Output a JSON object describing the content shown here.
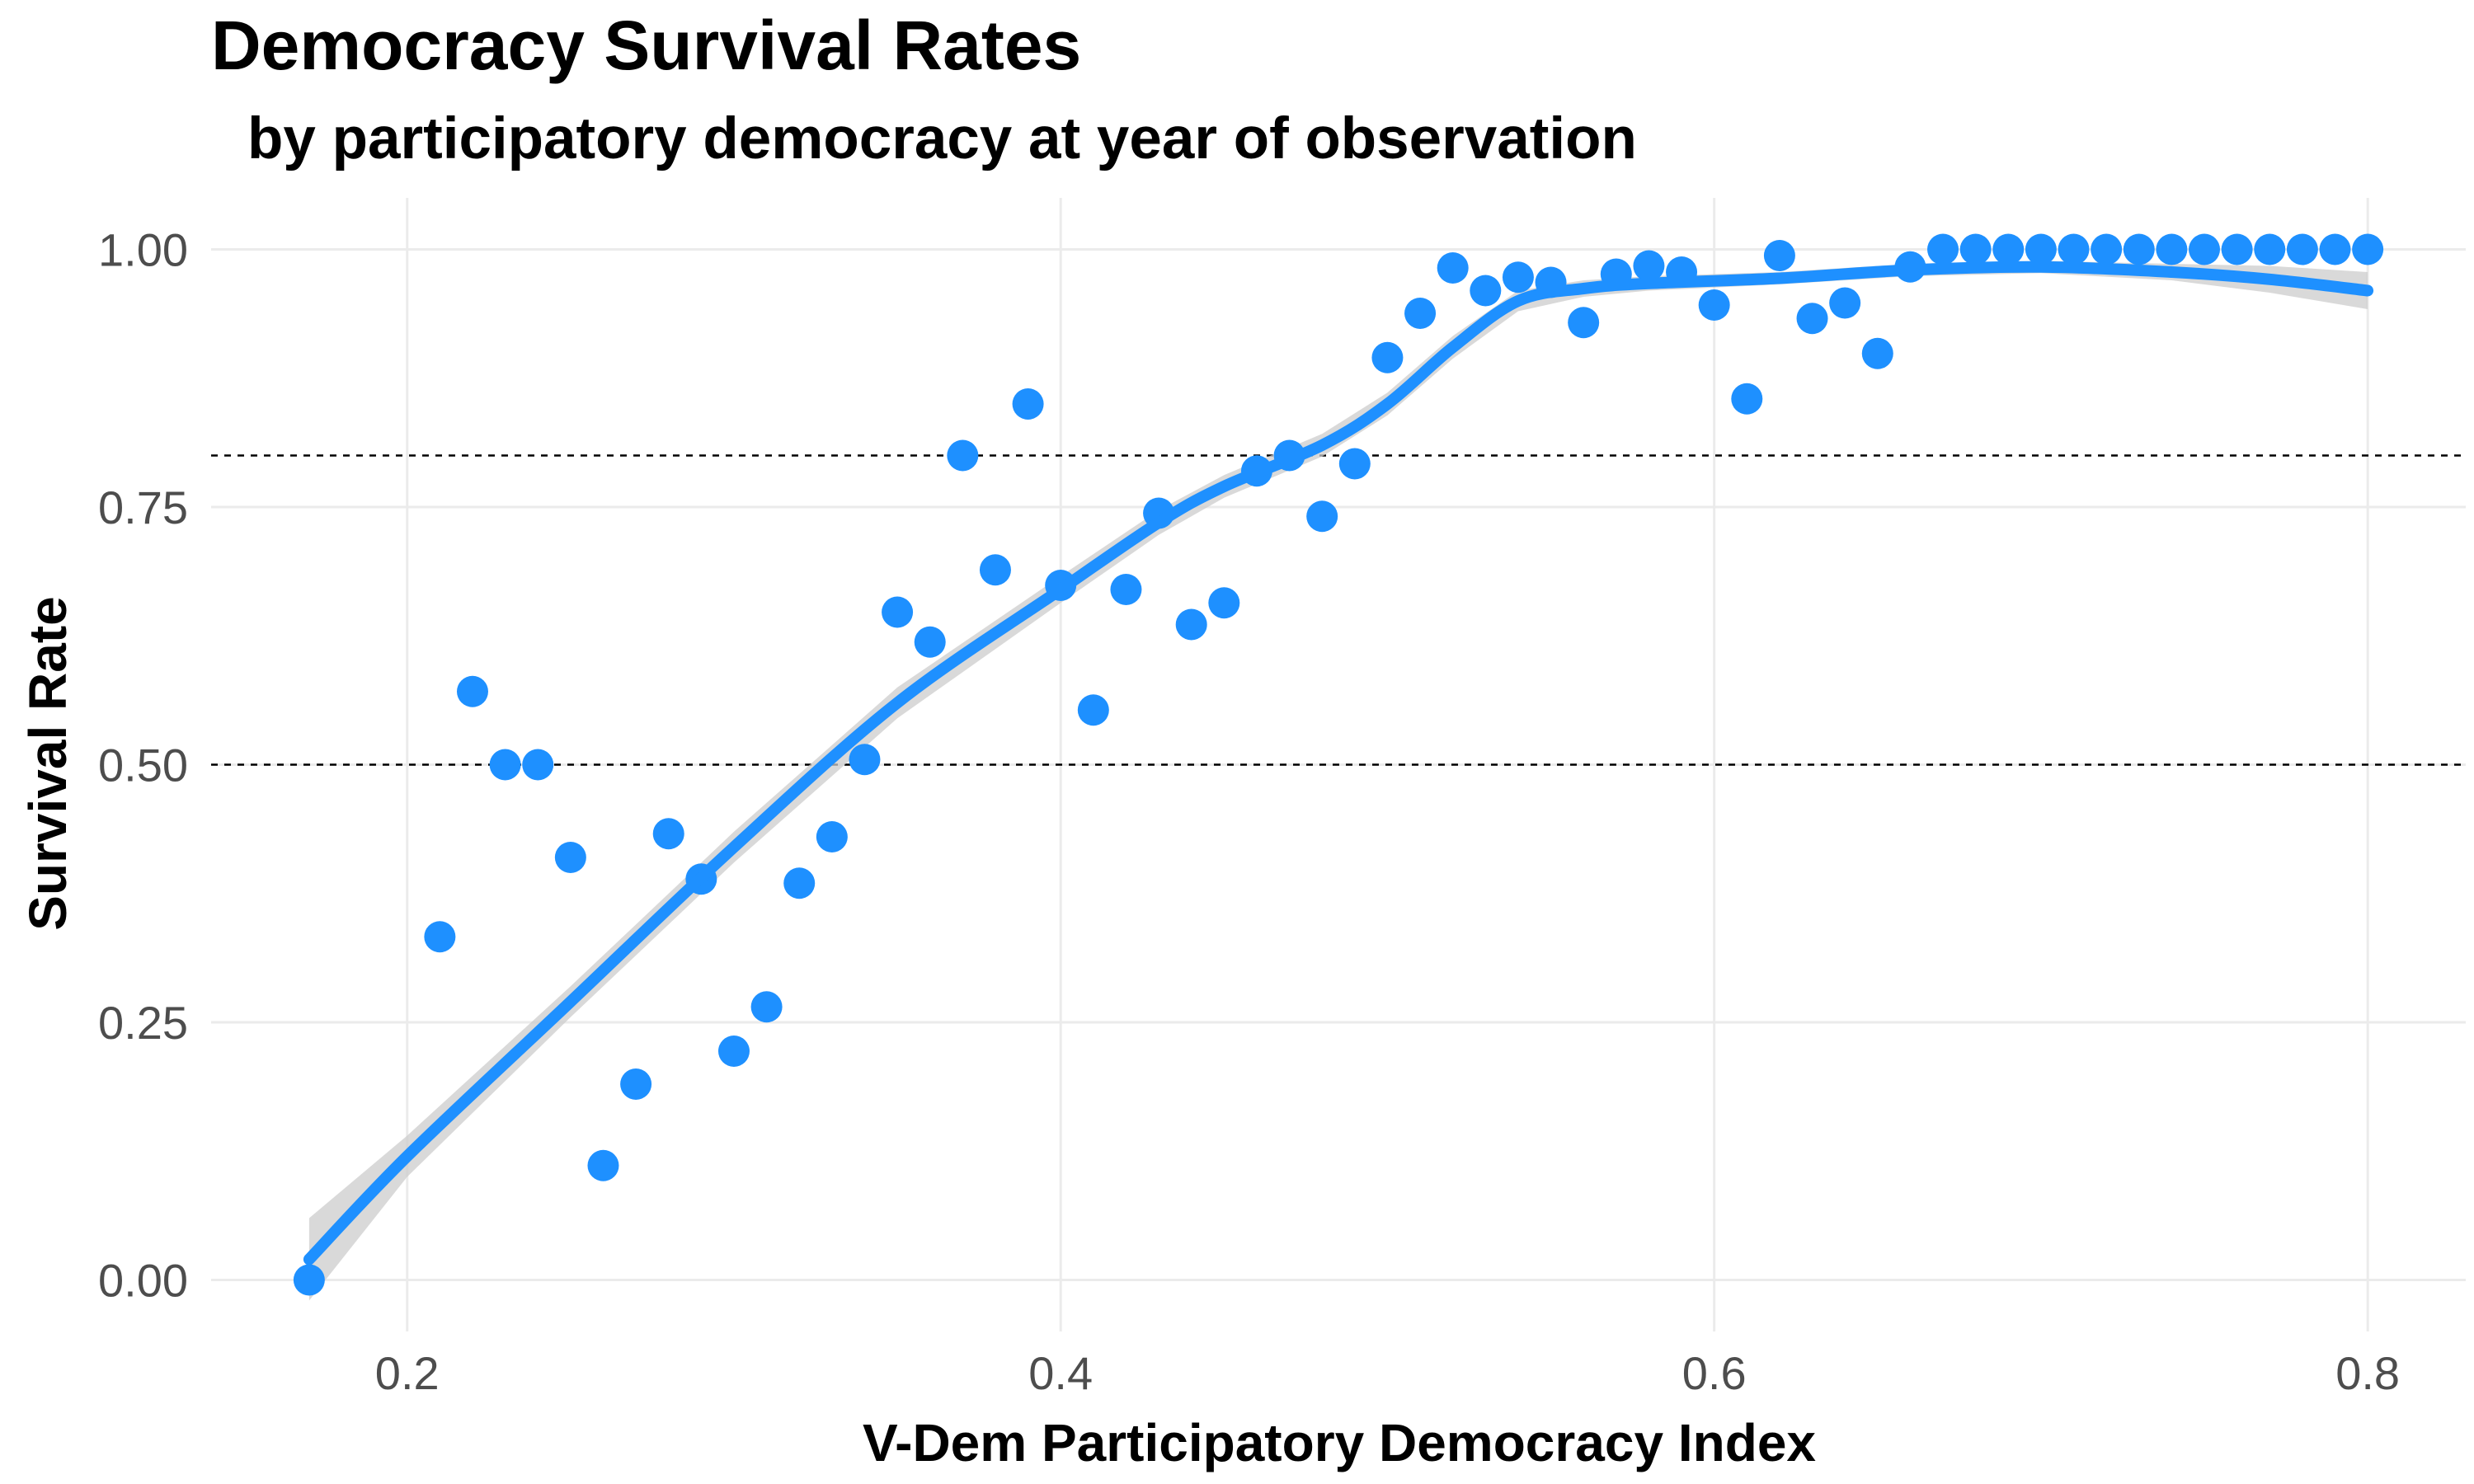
{
  "chart_data": {
    "type": "scatter",
    "title": "Democracy Survival Rates",
    "subtitle": "by participatory democracy at year of observation",
    "xlabel": "V-Dem Participatory Democracy Index",
    "ylabel": "Survival Rate",
    "xlim": [
      0.14,
      0.83
    ],
    "ylim": [
      -0.05,
      1.05
    ],
    "x_ticks": [
      0.2,
      0.4,
      0.6,
      0.8
    ],
    "x_tick_labels": [
      "0.2",
      "0.4",
      "0.6",
      "0.8"
    ],
    "y_ticks": [
      0.0,
      0.25,
      0.5,
      0.75,
      1.0
    ],
    "y_tick_labels": [
      "0.00",
      "0.25",
      "0.50",
      "0.75",
      "1.00"
    ],
    "grid": true,
    "legend": "none",
    "reference_lines": [
      0.5,
      0.8
    ],
    "point_color": "#1e90ff",
    "line_color": "#1e90ff",
    "ribbon_color": "#cccccc",
    "points": {
      "x": [
        0.17,
        0.21,
        0.22,
        0.23,
        0.24,
        0.25,
        0.26,
        0.27,
        0.28,
        0.29,
        0.3,
        0.31,
        0.32,
        0.33,
        0.34,
        0.35,
        0.36,
        0.37,
        0.38,
        0.39,
        0.4,
        0.41,
        0.42,
        0.43,
        0.44,
        0.45,
        0.46,
        0.47,
        0.48,
        0.49,
        0.5,
        0.51,
        0.52,
        0.53,
        0.54,
        0.55,
        0.56,
        0.57,
        0.58,
        0.59,
        0.6,
        0.61,
        0.62,
        0.63,
        0.64,
        0.65,
        0.66,
        0.67,
        0.68,
        0.69,
        0.7,
        0.71,
        0.72,
        0.73,
        0.74,
        0.75,
        0.76,
        0.77,
        0.78,
        0.79,
        0.8
      ],
      "y": [
        0.0,
        0.333,
        0.571,
        0.5,
        0.5,
        0.41,
        0.111,
        0.19,
        0.433,
        0.389,
        0.222,
        0.265,
        0.385,
        0.43,
        0.505,
        0.648,
        0.619,
        0.8,
        0.689,
        0.85,
        0.674,
        0.553,
        0.67,
        0.744,
        0.636,
        0.657,
        0.785,
        0.8,
        0.741,
        0.792,
        0.895,
        0.938,
        0.982,
        0.96,
        0.973,
        0.968,
        0.929,
        0.976,
        0.984,
        0.978,
        0.946,
        0.855,
        0.994,
        0.933,
        0.948,
        0.899,
        0.983,
        1.0,
        1.0,
        1.0,
        1.0,
        1.0,
        1.0,
        1.0,
        1.0,
        1.0,
        1.0,
        1.0,
        1.0,
        1.0,
        1.0
      ]
    },
    "smooth": {
      "x": [
        0.17,
        0.2,
        0.25,
        0.3,
        0.35,
        0.4,
        0.43,
        0.45,
        0.48,
        0.5,
        0.52,
        0.54,
        0.56,
        0.58,
        0.62,
        0.66,
        0.7,
        0.74,
        0.77,
        0.8
      ],
      "y": [
        0.02,
        0.12,
        0.27,
        0.42,
        0.56,
        0.67,
        0.735,
        0.77,
        0.81,
        0.85,
        0.905,
        0.95,
        0.962,
        0.967,
        0.972,
        0.98,
        0.983,
        0.978,
        0.971,
        0.96
      ],
      "lower": [
        -0.02,
        0.1,
        0.255,
        0.405,
        0.545,
        0.657,
        0.723,
        0.759,
        0.799,
        0.839,
        0.894,
        0.94,
        0.954,
        0.96,
        0.966,
        0.974,
        0.977,
        0.97,
        0.958,
        0.942
      ],
      "upper": [
        0.06,
        0.14,
        0.285,
        0.435,
        0.575,
        0.683,
        0.747,
        0.781,
        0.821,
        0.861,
        0.916,
        0.96,
        0.97,
        0.974,
        0.978,
        0.986,
        0.989,
        0.986,
        0.984,
        0.978
      ]
    }
  }
}
